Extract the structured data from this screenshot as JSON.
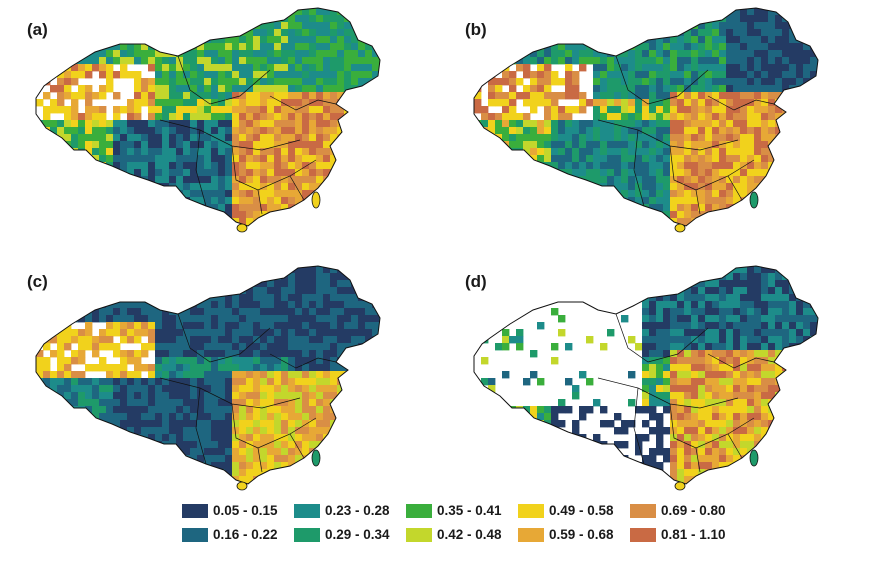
{
  "panels": [
    {
      "label": "(a)",
      "pattern": "a"
    },
    {
      "label": "(b)",
      "pattern": "b"
    },
    {
      "label": "(c)",
      "pattern": "c"
    },
    {
      "label": "(d)",
      "pattern": "d"
    }
  ],
  "legend": {
    "classes": [
      {
        "range": "0.05 - 0.15",
        "color": "#243b64"
      },
      {
        "range": "0.16 - 0.22",
        "color": "#1e6680"
      },
      {
        "range": "0.23 - 0.28",
        "color": "#1d8c8a"
      },
      {
        "range": "0.29 - 0.34",
        "color": "#1e9a6a"
      },
      {
        "range": "0.35 - 0.41",
        "color": "#3aae3c"
      },
      {
        "range": "0.42 - 0.48",
        "color": "#c3d72c"
      },
      {
        "range": "0.49 - 0.58",
        "color": "#f1d21c"
      },
      {
        "range": "0.59 - 0.68",
        "color": "#e7a836"
      },
      {
        "range": "0.69 - 0.80",
        "color": "#d98e45"
      },
      {
        "range": "0.81 - 1.10",
        "color": "#c96a44"
      }
    ]
  }
}
